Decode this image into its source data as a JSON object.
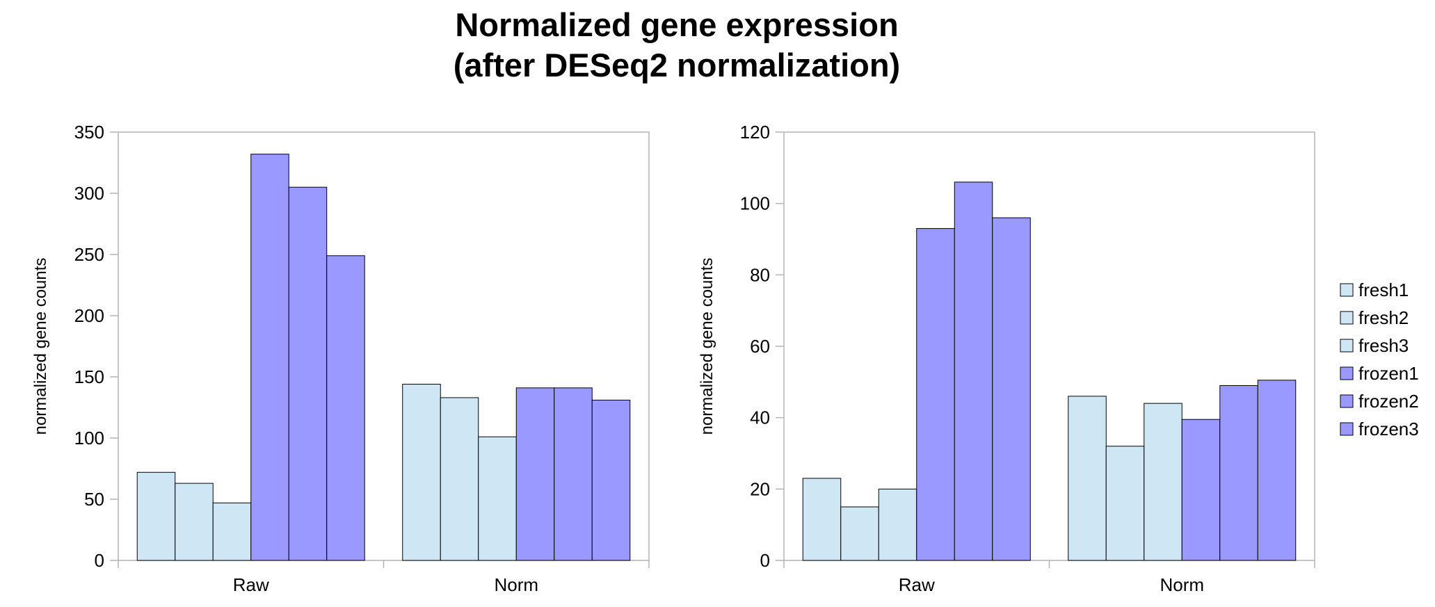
{
  "title_line1": "Normalized gene expression",
  "title_line2": "(after DESeq2 normalization)",
  "legend": {
    "placement": "right",
    "entries": [
      "fresh1",
      "fresh2",
      "fresh3",
      "frozen1",
      "frozen2",
      "frozen3"
    ]
  },
  "colors": {
    "fresh": "#cfe7f5",
    "frozen": "#9999ff",
    "bar_stroke": "#000000",
    "axis": "#b3b3b3"
  },
  "chart_data": [
    {
      "type": "bar",
      "ylabel": "normalized gene counts",
      "xlabel": "",
      "ylim": [
        0,
        350
      ],
      "yticks": [
        "0",
        "50",
        "100",
        "150",
        "200",
        "250",
        "300",
        "350"
      ],
      "categories": [
        "Raw",
        "Norm"
      ],
      "grid": false,
      "series": [
        {
          "name": "fresh1",
          "values": [
            72,
            144
          ]
        },
        {
          "name": "fresh2",
          "values": [
            63,
            133
          ]
        },
        {
          "name": "fresh3",
          "values": [
            47,
            101
          ]
        },
        {
          "name": "frozen1",
          "values": [
            332,
            141
          ]
        },
        {
          "name": "frozen2",
          "values": [
            305,
            141
          ]
        },
        {
          "name": "frozen3",
          "values": [
            249,
            131
          ]
        }
      ]
    },
    {
      "type": "bar",
      "ylabel": "normalized gene counts",
      "xlabel": "",
      "ylim": [
        0,
        120
      ],
      "yticks": [
        "0",
        "20",
        "40",
        "60",
        "80",
        "100",
        "120"
      ],
      "categories": [
        "Raw",
        "Norm"
      ],
      "grid": false,
      "series": [
        {
          "name": "fresh1",
          "values": [
            23,
            46
          ]
        },
        {
          "name": "fresh2",
          "values": [
            15,
            32
          ]
        },
        {
          "name": "fresh3",
          "values": [
            20,
            44
          ]
        },
        {
          "name": "frozen1",
          "values": [
            93,
            39.5
          ]
        },
        {
          "name": "frozen2",
          "values": [
            106,
            49
          ]
        },
        {
          "name": "frozen3",
          "values": [
            96,
            50.5
          ]
        }
      ]
    }
  ]
}
